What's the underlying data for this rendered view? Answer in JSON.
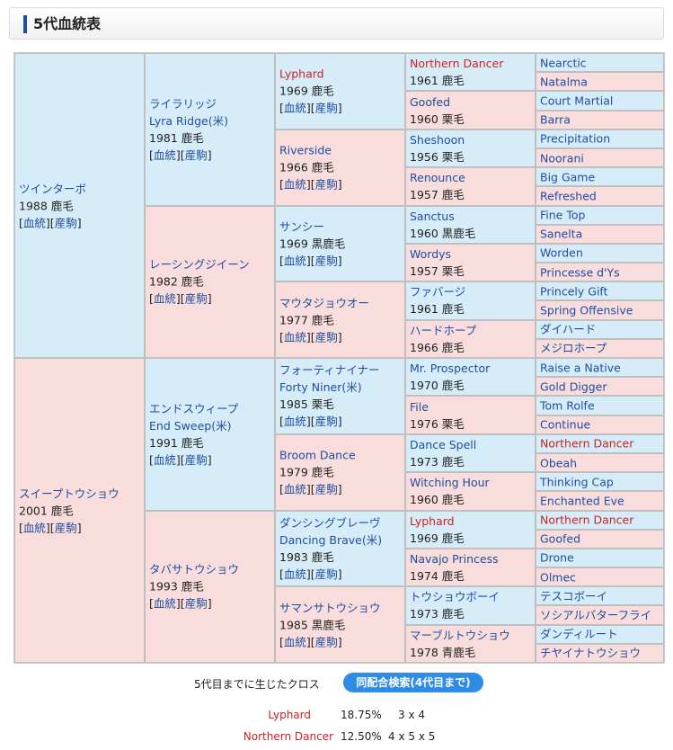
{
  "header": {
    "title": "5代血統表"
  },
  "pedigree": {
    "gen1": [
      {
        "ja": "ツインターボ",
        "info": "1988 鹿毛",
        "sex": "male"
      },
      {
        "ja": "スイープトウショウ",
        "info": "2001 鹿毛",
        "sex": "female"
      }
    ],
    "gen2": [
      {
        "ja": "ライラリッジ",
        "en": "Lyra Ridge(米)",
        "info": "1981 鹿毛",
        "sex": "male"
      },
      {
        "ja": "レーシングジイーン",
        "info": "1982 鹿毛",
        "sex": "female"
      },
      {
        "ja": "エンドスウィープ",
        "en": "End Sweep(米)",
        "info": "1991 鹿毛",
        "sex": "male"
      },
      {
        "ja": "タバサトウショウ",
        "info": "1993 鹿毛",
        "sex": "female"
      }
    ],
    "gen3": [
      {
        "name": "Lyphard",
        "info": "1969 鹿毛",
        "sex": "male",
        "red": true
      },
      {
        "name": "Riverside",
        "info": "1966 鹿毛",
        "sex": "female"
      },
      {
        "name": "サンシー",
        "info": "1969 黒鹿毛",
        "sex": "male"
      },
      {
        "name": "マウタジョウオー",
        "info": "1977 鹿毛",
        "sex": "female"
      },
      {
        "name": "フォーティナイナー",
        "en": "Forty Niner(米)",
        "info": "1985 栗毛",
        "sex": "male"
      },
      {
        "name": "Broom Dance",
        "info": "1979 鹿毛",
        "sex": "female"
      },
      {
        "name": "ダンシングブレーヴ",
        "en": "Dancing Brave(米)",
        "info": "1983 鹿毛",
        "sex": "male"
      },
      {
        "name": "サマンサトウショウ",
        "info": "1985 黒鹿毛",
        "sex": "female"
      }
    ],
    "gen4": [
      {
        "name": "Northern Dancer",
        "info": "1961 鹿毛",
        "sex": "male",
        "red": true
      },
      {
        "name": "Goofed",
        "info": "1960 栗毛",
        "sex": "female"
      },
      {
        "name": "Sheshoon",
        "info": "1956 栗毛",
        "sex": "male"
      },
      {
        "name": "Renounce",
        "info": "1957 鹿毛",
        "sex": "female"
      },
      {
        "name": "Sanctus",
        "info": "1960 黒鹿毛",
        "sex": "male"
      },
      {
        "name": "Wordys",
        "info": "1957 栗毛",
        "sex": "female"
      },
      {
        "name": "ファバージ",
        "info": "1961 鹿毛",
        "sex": "male"
      },
      {
        "name": "ハードホープ",
        "info": "1966 鹿毛",
        "sex": "female"
      },
      {
        "name": "Mr. Prospector",
        "info": "1970 鹿毛",
        "sex": "male"
      },
      {
        "name": "File",
        "info": "1976 栗毛",
        "sex": "female"
      },
      {
        "name": "Dance Spell",
        "info": "1973 鹿毛",
        "sex": "male"
      },
      {
        "name": "Witching Hour",
        "info": "1960 鹿毛",
        "sex": "female"
      },
      {
        "name": "Lyphard",
        "info": "1969 鹿毛",
        "sex": "male",
        "red": true
      },
      {
        "name": "Navajo Princess",
        "info": "1974 鹿毛",
        "sex": "female"
      },
      {
        "name": "トウショウボーイ",
        "info": "1973 鹿毛",
        "sex": "male"
      },
      {
        "name": "マーブルトウショウ",
        "info": "1978 青鹿毛",
        "sex": "female"
      }
    ],
    "gen5": [
      {
        "name": "Nearctic",
        "sex": "male"
      },
      {
        "name": "Natalma",
        "sex": "female"
      },
      {
        "name": "Court Martial",
        "sex": "male"
      },
      {
        "name": "Barra",
        "sex": "female"
      },
      {
        "name": "Precipitation",
        "sex": "male"
      },
      {
        "name": "Noorani",
        "sex": "female"
      },
      {
        "name": "Big Game",
        "sex": "male"
      },
      {
        "name": "Refreshed",
        "sex": "female"
      },
      {
        "name": "Fine Top",
        "sex": "male"
      },
      {
        "name": "Sanelta",
        "sex": "female"
      },
      {
        "name": "Worden",
        "sex": "male"
      },
      {
        "name": "Princesse d'Ys",
        "sex": "female"
      },
      {
        "name": "Princely Gift",
        "sex": "male"
      },
      {
        "name": "Spring Offensive",
        "sex": "female"
      },
      {
        "name": "ダイハード",
        "sex": "male"
      },
      {
        "name": "メジロホープ",
        "sex": "female"
      },
      {
        "name": "Raise a Native",
        "sex": "male"
      },
      {
        "name": "Gold Digger",
        "sex": "female"
      },
      {
        "name": "Tom Rolfe",
        "sex": "male"
      },
      {
        "name": "Continue",
        "sex": "female"
      },
      {
        "name": "Northern Dancer",
        "sex": "male",
        "red": true
      },
      {
        "name": "Obeah",
        "sex": "female"
      },
      {
        "name": "Thinking Cap",
        "sex": "male"
      },
      {
        "name": "Enchanted Eve",
        "sex": "female"
      },
      {
        "name": "Northern Dancer",
        "sex": "male",
        "red": true
      },
      {
        "name": "Goofed",
        "sex": "female"
      },
      {
        "name": "Drone",
        "sex": "male"
      },
      {
        "name": "Olmec",
        "sex": "female"
      },
      {
        "name": "テスコボーイ",
        "sex": "male"
      },
      {
        "name": "ソシアルバターフライ",
        "sex": "female"
      },
      {
        "name": "ダンディルート",
        "sex": "male"
      },
      {
        "name": "チヤイナトウショウ",
        "sex": "female"
      }
    ],
    "link_pedigree": "血統",
    "link_offspring": "産駒"
  },
  "cross": {
    "label": "5代目までに生じたクロス",
    "button": "同配合検索(4代目まで)",
    "rows": [
      {
        "name": "Lyphard",
        "pct": "18.75%",
        "gen": "3 x 4"
      },
      {
        "name": "Northern Dancer",
        "pct": "12.50%",
        "gen": "4 x 5 x 5"
      }
    ]
  },
  "colors": {
    "male_bg": "#d6ecf9",
    "female_bg": "#f9dcdc",
    "link": "#1f4fa0",
    "cross_red": "#cc2222",
    "button": "#2e8be6"
  }
}
